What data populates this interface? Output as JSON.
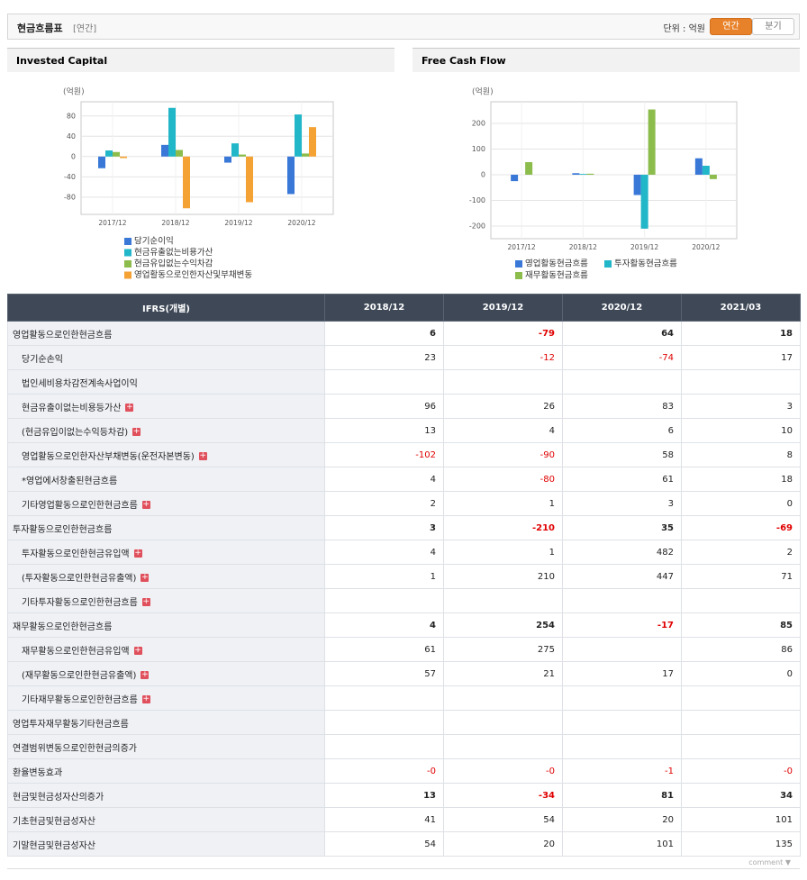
{
  "header": {
    "title": "현금흐름표",
    "period": "[연간]",
    "unit": "단위 : 억원",
    "tabs": [
      "연간",
      "분기"
    ],
    "active_tab": 0
  },
  "chart_data": [
    {
      "type": "bar",
      "title": "Invested Capital",
      "y_label": "(억원)",
      "categories": [
        "2017/12",
        "2018/12",
        "2019/12",
        "2020/12"
      ],
      "series": [
        {
          "name": "당기순이익",
          "color": "#3a78d8",
          "values": [
            -23,
            23,
            -12,
            -74
          ]
        },
        {
          "name": "현금유출없는비용가산",
          "color": "#21b6c8",
          "values": [
            12,
            96,
            26,
            83
          ]
        },
        {
          "name": "현금유입없는수익차감",
          "color": "#8cbc4c",
          "values": [
            9,
            13,
            4,
            6
          ]
        },
        {
          "name": "영업활동으로인한자산및부채변동",
          "color": "#f5a235",
          "values": [
            -3,
            -102,
            -90,
            58
          ]
        }
      ],
      "ylim": [
        -114,
        108
      ],
      "yticks": [
        -80,
        -40,
        0,
        40,
        80
      ],
      "grid": true
    },
    {
      "type": "bar",
      "title": "Free Cash Flow",
      "y_label": "(억원)",
      "categories": [
        "2017/12",
        "2018/12",
        "2019/12",
        "2020/12"
      ],
      "series": [
        {
          "name": "영업활동현금흐름",
          "color": "#3a78d8",
          "values": [
            -25,
            6,
            -79,
            64
          ]
        },
        {
          "name": "투자활동현금흐름",
          "color": "#21b6c8",
          "values": [
            0,
            3,
            -210,
            35
          ]
        },
        {
          "name": "재무활동현금흐름",
          "color": "#8cbc4c",
          "values": [
            49,
            4,
            254,
            -17
          ]
        }
      ],
      "ylim": [
        -249,
        284
      ],
      "yticks": [
        -200,
        -100,
        0,
        100,
        200
      ],
      "grid": true
    }
  ],
  "table": {
    "header": [
      "IFRS(개별)",
      "2018/12",
      "2019/12",
      "2020/12",
      "2021/03"
    ],
    "rows": [
      {
        "label": "영업활동으로인한현금흐름",
        "bold": true,
        "cells": [
          "6",
          "-79",
          "64",
          "18"
        ]
      },
      {
        "label": "당기순손익",
        "indent": true,
        "cells": [
          "23",
          "-12",
          "-74",
          "17"
        ]
      },
      {
        "label": "법인세비용차감전계속사업이익",
        "indent": true,
        "cells": [
          null,
          null,
          null,
          null
        ]
      },
      {
        "label": "현금유출이없는비용등가산",
        "indent": true,
        "expandable": true,
        "cells": [
          "96",
          "26",
          "83",
          "3"
        ]
      },
      {
        "label": "(현금유입이없는수익등차감)",
        "indent": true,
        "expandable": true,
        "cells": [
          "13",
          "4",
          "6",
          "10"
        ]
      },
      {
        "label": "영업활동으로인한자산부채변동(운전자본변동)",
        "indent": true,
        "expandable": true,
        "cells": [
          "-102",
          "-90",
          "58",
          "8"
        ]
      },
      {
        "label": "*영업에서창출된현금흐름",
        "indent": true,
        "cells": [
          "4",
          "-80",
          "61",
          "18"
        ]
      },
      {
        "label": "기타영업활동으로인한현금흐름",
        "indent": true,
        "expandable": true,
        "cells": [
          "2",
          "1",
          "3",
          "0"
        ]
      },
      {
        "label": "투자활동으로인한현금흐름",
        "bold": true,
        "cells": [
          "3",
          "-210",
          "35",
          "-69"
        ]
      },
      {
        "label": "투자활동으로인한현금유입액",
        "indent": true,
        "expandable": true,
        "cells": [
          "4",
          "1",
          "482",
          "2"
        ]
      },
      {
        "label": "(투자활동으로인한현금유출액)",
        "indent": true,
        "expandable": true,
        "cells": [
          "1",
          "210",
          "447",
          "71"
        ]
      },
      {
        "label": "기타투자활동으로인한현금흐름",
        "indent": true,
        "expandable": true,
        "cells": [
          null,
          null,
          null,
          null
        ]
      },
      {
        "label": "재무활동으로인한현금흐름",
        "bold": true,
        "cells": [
          "4",
          "254",
          "-17",
          "85"
        ]
      },
      {
        "label": "재무활동으로인한현금유입액",
        "indent": true,
        "expandable": true,
        "cells": [
          "61",
          "275",
          null,
          "86"
        ]
      },
      {
        "label": "(재무활동으로인한현금유출액)",
        "indent": true,
        "expandable": true,
        "cells": [
          "57",
          "21",
          "17",
          "0"
        ]
      },
      {
        "label": "기타재무활동으로인한현금흐름",
        "indent": true,
        "expandable": true,
        "cells": [
          null,
          null,
          null,
          null
        ]
      },
      {
        "label": "영업투자재무활동기타현금흐름",
        "cells": [
          null,
          null,
          null,
          null
        ]
      },
      {
        "label": "연결범위변동으로인한현금의증가",
        "cells": [
          null,
          null,
          null,
          null
        ]
      },
      {
        "label": "환율변동효과",
        "cells": [
          "-0",
          "-0",
          "-1",
          "-0"
        ]
      },
      {
        "label": "현금및현금성자산의증가",
        "bold": true,
        "cells": [
          "13",
          "-34",
          "81",
          "34"
        ]
      },
      {
        "label": "기초현금및현금성자산",
        "cells": [
          "41",
          "54",
          "20",
          "101"
        ]
      },
      {
        "label": "기말현금및현금성자산",
        "cells": [
          "54",
          "20",
          "101",
          "135"
        ]
      }
    ]
  },
  "footer": {
    "comment": "comment"
  }
}
